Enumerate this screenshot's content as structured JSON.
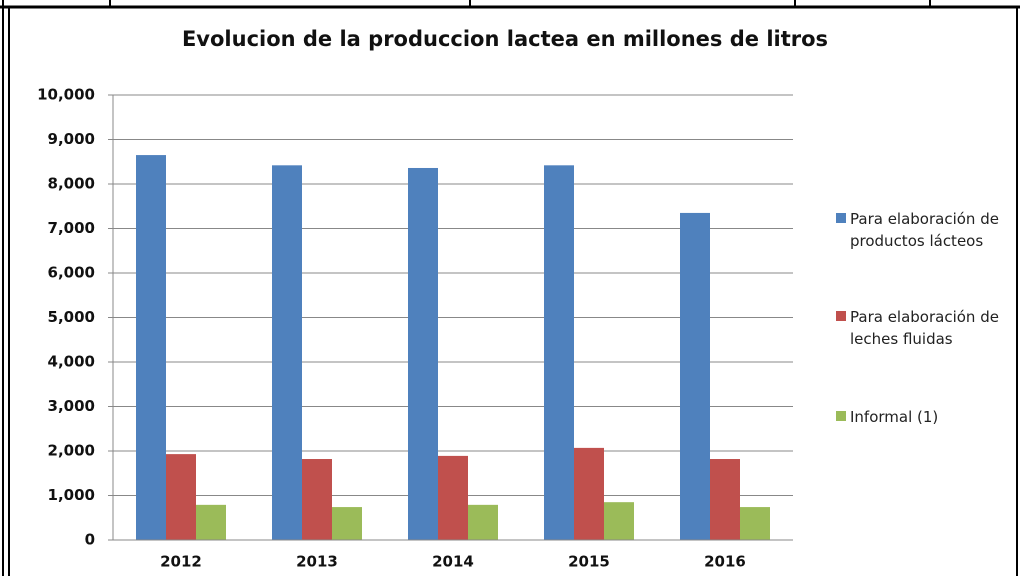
{
  "chart_data": {
    "type": "bar",
    "title": "Evolucion de la produccion lactea en millones de litros",
    "categories": [
      "2012",
      "2013",
      "2014",
      "2015",
      "2016"
    ],
    "series": [
      {
        "name": "Para elaboración de productos lácteos",
        "color": "#4f81bd",
        "values": [
          8650,
          8420,
          8360,
          8420,
          7350
        ]
      },
      {
        "name": "Para elaboración de leches fluidas",
        "color": "#c0504d",
        "values": [
          1930,
          1820,
          1890,
          2070,
          1820
        ]
      },
      {
        "name": "Informal (1)",
        "color": "#9bbb59",
        "values": [
          790,
          740,
          790,
          850,
          740
        ]
      }
    ],
    "ylim": [
      0,
      10000
    ],
    "yticks": [
      0,
      {
        "value": 1000,
        "label": "1,000"
      },
      {
        "value": 2000,
        "label": "2,000"
      },
      {
        "value": 3000,
        "label": "3,000"
      },
      {
        "value": 4000,
        "label": "4,000"
      },
      {
        "value": 5000,
        "label": "5,000"
      },
      {
        "value": 6000,
        "label": "6,000"
      },
      {
        "value": 7000,
        "label": "7,000"
      },
      {
        "value": 8000,
        "label": "8,000"
      },
      {
        "value": 9000,
        "label": "9,000"
      },
      {
        "value": 10000,
        "label": "10,000"
      }
    ],
    "grid": true,
    "legend": "right"
  }
}
